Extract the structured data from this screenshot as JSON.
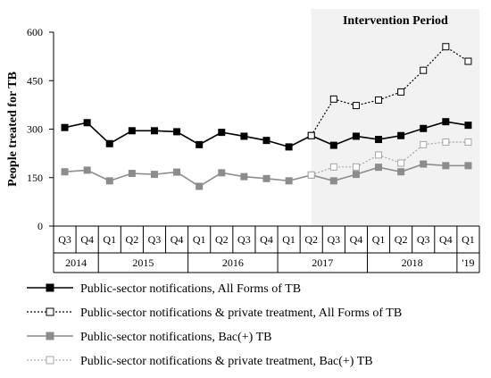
{
  "chart_data": {
    "type": "line",
    "ylabel": "People treated for TB",
    "ylim": [
      0,
      600
    ],
    "yticks": [
      0,
      150,
      300,
      450,
      600
    ],
    "grid": false,
    "shaded_region": {
      "label": "Intervention Period",
      "start_index": 11,
      "end_index": 18,
      "color": "#f2f2f2"
    },
    "quarters": [
      "Q3",
      "Q4",
      "Q1",
      "Q2",
      "Q3",
      "Q4",
      "Q1",
      "Q2",
      "Q3",
      "Q4",
      "Q1",
      "Q2",
      "Q3",
      "Q4",
      "Q1",
      "Q2",
      "Q3",
      "Q4",
      "Q1"
    ],
    "years": [
      {
        "label": "2014",
        "start": 0,
        "end": 1
      },
      {
        "label": "2015",
        "start": 2,
        "end": 5
      },
      {
        "label": "2016",
        "start": 6,
        "end": 9
      },
      {
        "label": "2017",
        "start": 10,
        "end": 13
      },
      {
        "label": "2018",
        "start": 14,
        "end": 17
      },
      {
        "label": "'19",
        "start": 18,
        "end": 18
      }
    ],
    "series": [
      {
        "name": "Public-sector notifications, All Forms of TB",
        "color": "#000000",
        "dash": "solid",
        "marker": "filled-square",
        "start_index": 0,
        "values": [
          305,
          320,
          255,
          295,
          295,
          292,
          252,
          290,
          278,
          265,
          245,
          280,
          250,
          278,
          268,
          280,
          302,
          323,
          312
        ]
      },
      {
        "name": "Public-sector notifications & private treatment, All Forms of TB",
        "color": "#000000",
        "dash": "dotted",
        "marker": "open-square",
        "start_index": 11,
        "values": [
          280,
          393,
          373,
          390,
          415,
          482,
          555,
          510
        ]
      },
      {
        "name": "Public-sector notifications, Bac(+) TB",
        "color": "#8c8c8c",
        "dash": "solid",
        "marker": "filled-square",
        "start_index": 0,
        "values": [
          168,
          173,
          140,
          163,
          160,
          167,
          123,
          165,
          153,
          147,
          140,
          158,
          140,
          160,
          182,
          168,
          192,
          187,
          187
        ]
      },
      {
        "name": "Public-sector notifications & private treatment, Bac(+) TB",
        "color": "#a6a6a6",
        "dash": "dotted",
        "marker": "open-square",
        "start_index": 11,
        "values": [
          158,
          183,
          183,
          220,
          195,
          252,
          260,
          260
        ]
      }
    ]
  }
}
